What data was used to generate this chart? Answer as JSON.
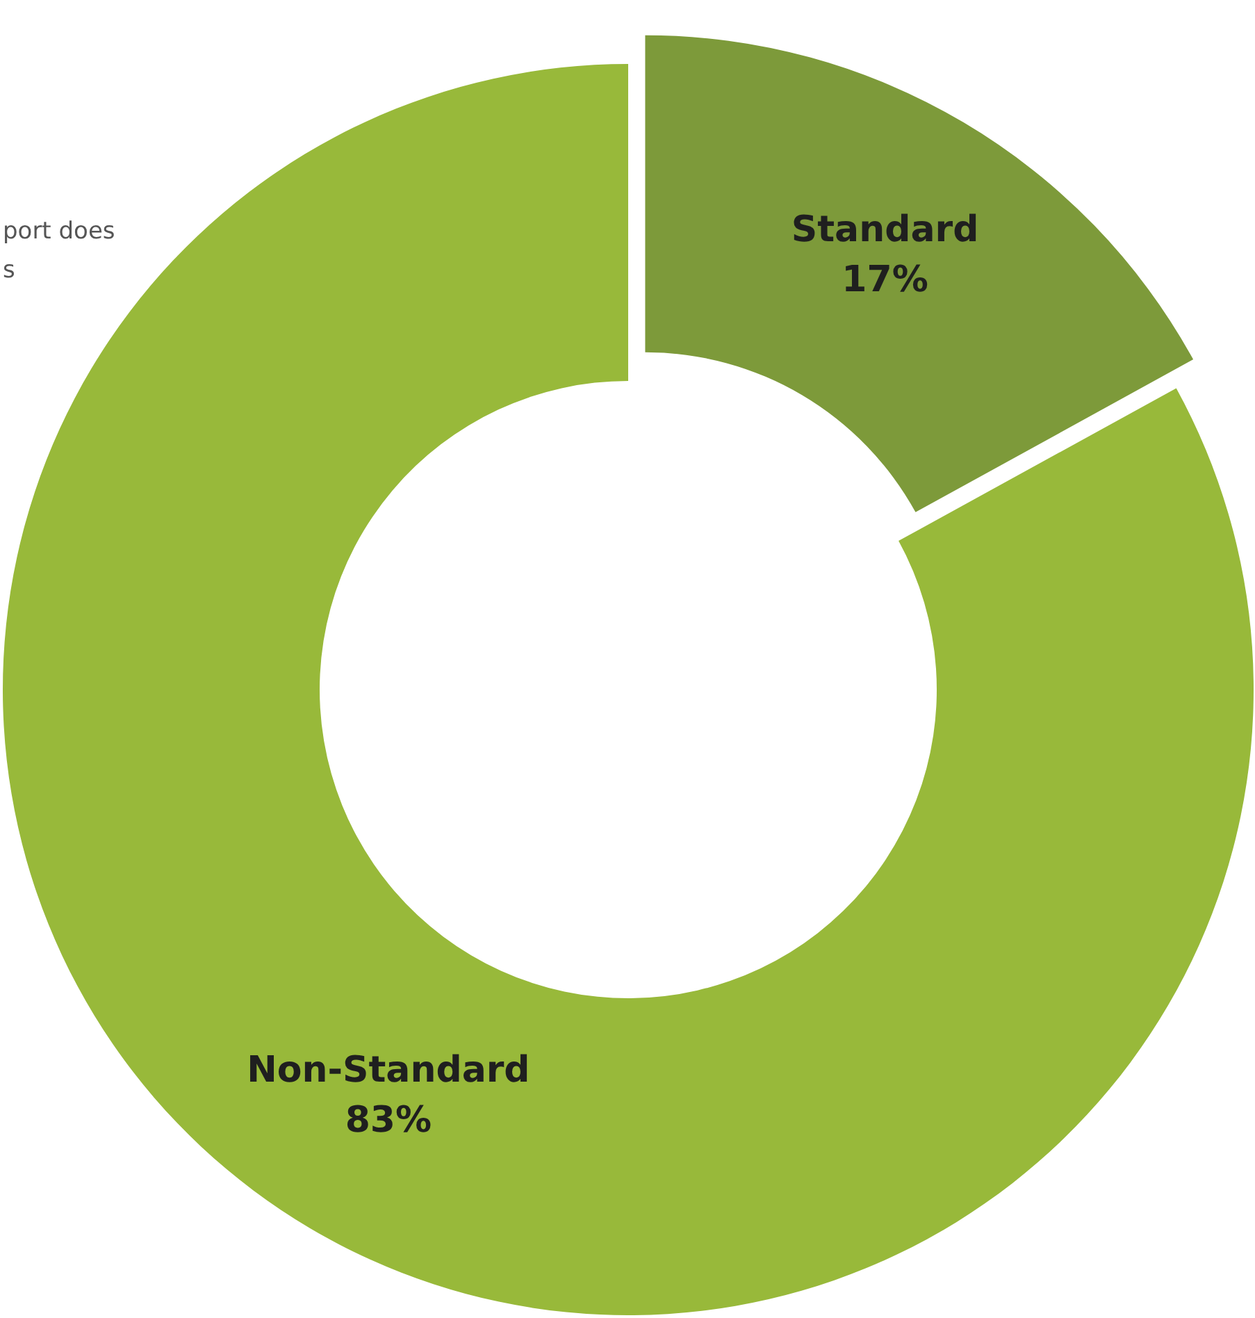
{
  "chart_data": {
    "type": "donut",
    "categories": [
      "Standard",
      "Non-Standard"
    ],
    "values": [
      17,
      83
    ],
    "colors": [
      "#7d9a3a",
      "#98b93a"
    ],
    "value_labels": [
      "17%",
      "83%"
    ],
    "legend": false,
    "annotations": [
      "port does",
      "s"
    ]
  }
}
